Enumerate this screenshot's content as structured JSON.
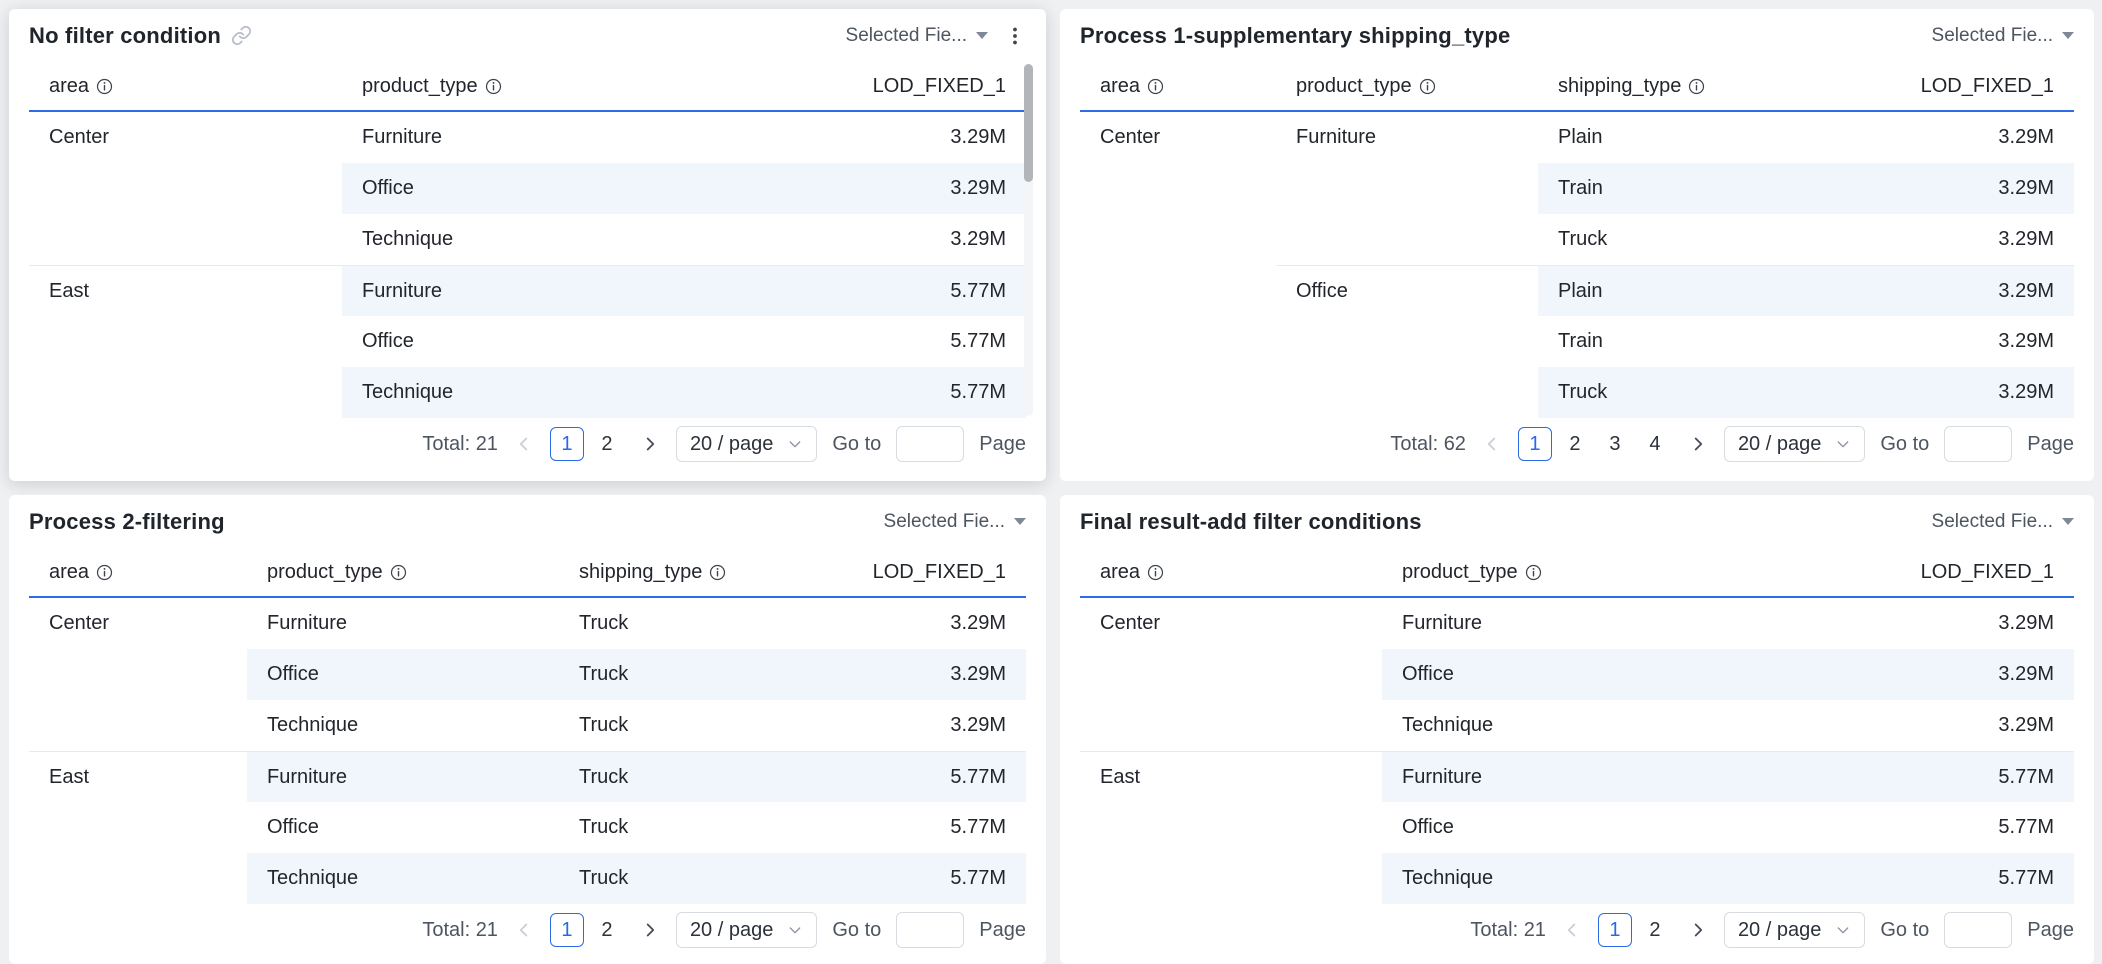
{
  "colors": {
    "accent_blue": "#2e6be6",
    "stripe_row": "#f1f6fc",
    "page_background": "#eef0f2",
    "divider": "#e8eaed"
  },
  "panels": [
    {
      "title": "No filter condition",
      "title_icon": "link-icon",
      "field_selector": "Selected Fie...",
      "has_menu": true,
      "columns": [
        {
          "label": "area",
          "info": true
        },
        {
          "label": "product_type",
          "info": true
        },
        {
          "label": "LOD_FIXED_1",
          "info": false
        }
      ],
      "stripe_from": 1,
      "rows": [
        {
          "cells": [
            "Center",
            "Furniture",
            "3.29M"
          ],
          "striped": false
        },
        {
          "cells": [
            "",
            "Office",
            "3.29M"
          ],
          "striped": true
        },
        {
          "cells": [
            "",
            "Technique",
            "3.29M"
          ],
          "striped": false
        },
        {
          "cells": [
            "East",
            "Furniture",
            "5.77M"
          ],
          "striped": true,
          "divider": true,
          "divider_from": 0
        },
        {
          "cells": [
            "",
            "Office",
            "5.77M"
          ],
          "striped": false
        },
        {
          "cells": [
            "",
            "Technique",
            "5.77M"
          ],
          "striped": true
        }
      ],
      "pagination": {
        "total": "Total: 21",
        "pages": [
          "1",
          "2"
        ],
        "active_page": "1",
        "page_size": "20 / page",
        "goto": "Go to",
        "page_suffix": "Page",
        "goto_value": ""
      }
    },
    {
      "title": "Process 1-supplementary shipping_type",
      "field_selector": "Selected Fie...",
      "has_menu": false,
      "columns": [
        {
          "label": "area",
          "info": true
        },
        {
          "label": "product_type",
          "info": true
        },
        {
          "label": "shipping_type",
          "info": true
        },
        {
          "label": "LOD_FIXED_1",
          "info": false
        }
      ],
      "stripe_from": 2,
      "rows": [
        {
          "cells": [
            "Center",
            "Furniture",
            "Plain",
            "3.29M"
          ],
          "striped": false
        },
        {
          "cells": [
            "",
            "",
            "Train",
            "3.29M"
          ],
          "striped": true
        },
        {
          "cells": [
            "",
            "",
            "Truck",
            "3.29M"
          ],
          "striped": false
        },
        {
          "cells": [
            "",
            "Office",
            "Plain",
            "3.29M"
          ],
          "striped": true,
          "divider": true,
          "divider_from": 1
        },
        {
          "cells": [
            "",
            "",
            "Train",
            "3.29M"
          ],
          "striped": false
        },
        {
          "cells": [
            "",
            "",
            "Truck",
            "3.29M"
          ],
          "striped": true
        }
      ],
      "pagination": {
        "total": "Total: 62",
        "pages": [
          "1",
          "2",
          "3",
          "4"
        ],
        "active_page": "1",
        "page_size": "20 / page",
        "goto": "Go to",
        "page_suffix": "Page",
        "goto_value": ""
      }
    },
    {
      "title": "Process 2-filtering",
      "field_selector": "Selected Fie...",
      "has_menu": false,
      "columns": [
        {
          "label": "area",
          "info": true
        },
        {
          "label": "product_type",
          "info": true
        },
        {
          "label": "shipping_type",
          "info": true
        },
        {
          "label": "LOD_FIXED_1",
          "info": false
        }
      ],
      "stripe_from": 1,
      "rows": [
        {
          "cells": [
            "Center",
            "Furniture",
            "Truck",
            "3.29M"
          ],
          "striped": false
        },
        {
          "cells": [
            "",
            "Office",
            "Truck",
            "3.29M"
          ],
          "striped": true
        },
        {
          "cells": [
            "",
            "Technique",
            "Truck",
            "3.29M"
          ],
          "striped": false
        },
        {
          "cells": [
            "East",
            "Furniture",
            "Truck",
            "5.77M"
          ],
          "striped": true,
          "divider": true,
          "divider_from": 0
        },
        {
          "cells": [
            "",
            "Office",
            "Truck",
            "5.77M"
          ],
          "striped": false
        },
        {
          "cells": [
            "",
            "Technique",
            "Truck",
            "5.77M"
          ],
          "striped": true
        }
      ],
      "pagination": {
        "total": "Total: 21",
        "pages": [
          "1",
          "2"
        ],
        "active_page": "1",
        "page_size": "20 / page",
        "goto": "Go to",
        "page_suffix": "Page",
        "goto_value": ""
      }
    },
    {
      "title": "Final result-add filter conditions",
      "field_selector": "Selected Fie...",
      "has_menu": false,
      "columns": [
        {
          "label": "area",
          "info": true
        },
        {
          "label": "product_type",
          "info": true
        },
        {
          "label": "LOD_FIXED_1",
          "info": false
        }
      ],
      "stripe_from": 1,
      "rows": [
        {
          "cells": [
            "Center",
            "Furniture",
            "3.29M"
          ],
          "striped": false
        },
        {
          "cells": [
            "",
            "Office",
            "3.29M"
          ],
          "striped": true
        },
        {
          "cells": [
            "",
            "Technique",
            "3.29M"
          ],
          "striped": false
        },
        {
          "cells": [
            "East",
            "Furniture",
            "5.77M"
          ],
          "striped": true,
          "divider": true,
          "divider_from": 0
        },
        {
          "cells": [
            "",
            "Office",
            "5.77M"
          ],
          "striped": false
        },
        {
          "cells": [
            "",
            "Technique",
            "5.77M"
          ],
          "striped": true
        }
      ],
      "pagination": {
        "total": "Total: 21",
        "pages": [
          "1",
          "2"
        ],
        "active_page": "1",
        "page_size": "20 / page",
        "goto": "Go to",
        "page_suffix": "Page",
        "goto_value": ""
      }
    }
  ]
}
